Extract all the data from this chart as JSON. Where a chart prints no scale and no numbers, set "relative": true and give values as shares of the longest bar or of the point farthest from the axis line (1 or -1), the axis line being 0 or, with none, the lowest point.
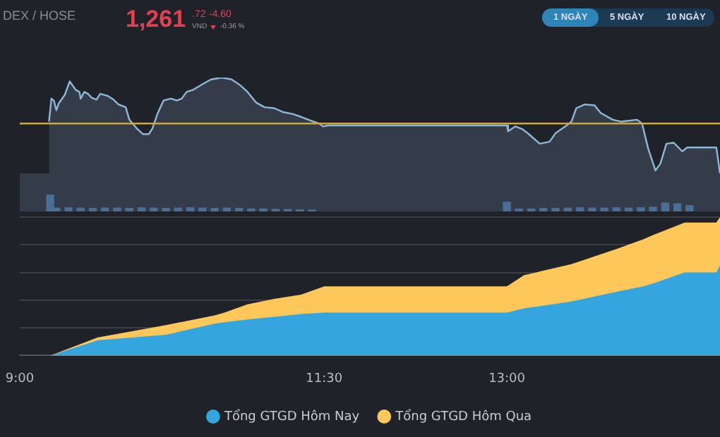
{
  "chart_data": [
    {
      "type": "area",
      "title": "DEX / HOSE",
      "annotations": [
        "1,261",
        ".72",
        "VND",
        "-4.60",
        "-0.36 %",
        "1 NGÀY",
        "5 NGÀY",
        "10 NGÀY"
      ],
      "relative": true,
      "tick_labels": false,
      "xlim": [
        9,
        14.75
      ],
      "color": "#8fb8d8",
      "x": [
        9.24,
        9.26,
        9.28,
        9.3,
        9.32,
        9.37,
        9.41,
        9.46,
        9.49,
        9.5,
        9.53,
        9.56,
        9.59,
        9.63,
        9.66,
        9.72,
        9.77,
        9.81,
        9.87,
        9.9,
        9.96,
        10.01,
        10.06,
        10.09,
        10.13,
        10.18,
        10.24,
        10.29,
        10.33,
        10.37,
        10.42,
        10.5,
        10.57,
        10.66,
        10.74,
        10.81,
        10.87,
        10.94,
        11.01,
        11.09,
        11.16,
        11.24,
        11.31,
        11.39,
        11.46,
        11.49,
        11.53,
        13.0,
        13.01,
        13.07,
        13.13,
        13.18,
        13.27,
        13.35,
        13.4,
        13.48,
        13.53,
        13.57,
        13.64,
        13.72,
        13.77,
        13.87,
        13.94,
        14.07,
        14.11,
        14.16,
        14.22,
        14.26,
        14.31,
        14.37,
        14.44,
        14.48,
        14.72,
        14.75
      ],
      "values": [
        0.54,
        0.78,
        0.76,
        0.66,
        0.73,
        0.82,
        0.96,
        0.87,
        0.85,
        0.78,
        0.85,
        0.83,
        0.79,
        0.77,
        0.83,
        0.81,
        0.77,
        0.72,
        0.69,
        0.56,
        0.47,
        0.41,
        0.41,
        0.47,
        0.62,
        0.76,
        0.78,
        0.76,
        0.78,
        0.85,
        0.87,
        0.93,
        0.98,
        1,
        0.98,
        0.92,
        0.85,
        0.74,
        0.69,
        0.68,
        0.64,
        0.62,
        0.59,
        0.55,
        0.52,
        0.49,
        0.5,
        0.5,
        0.44,
        0.49,
        0.46,
        0.41,
        0.31,
        0.33,
        0.42,
        0.49,
        0.54,
        0.68,
        0.72,
        0.71,
        0.63,
        0.56,
        0.54,
        0.56,
        0.52,
        0.26,
        0.03,
        0.1,
        0.31,
        0.32,
        0.23,
        0.27,
        0.27,
        0
      ],
      "ref_lines": [
        {
          "axis": "y",
          "value": 0.52,
          "color": "#c8a84a"
        }
      ]
    },
    {
      "type": "bar",
      "relative": true,
      "tick_labels": false,
      "xlim": [
        9,
        14.75
      ],
      "color": "#4a6f96",
      "x": [
        9.25,
        9.3,
        9.4,
        9.5,
        9.6,
        9.7,
        9.8,
        9.9,
        10.0,
        10.1,
        10.2,
        10.3,
        10.4,
        10.5,
        10.6,
        10.7,
        10.8,
        10.9,
        11.0,
        11.1,
        11.2,
        11.3,
        11.4,
        13.0,
        13.1,
        13.2,
        13.3,
        13.4,
        13.5,
        13.6,
        13.7,
        13.8,
        13.9,
        14.0,
        14.1,
        14.2,
        14.3,
        14.4,
        14.5
      ],
      "values": [
        1,
        0.2,
        0.22,
        0.2,
        0.18,
        0.2,
        0.2,
        0.18,
        0.22,
        0.2,
        0.18,
        0.2,
        0.22,
        0.2,
        0.18,
        0.2,
        0.18,
        0.15,
        0.15,
        0.12,
        0.12,
        0.1,
        0.08,
        0.55,
        0.15,
        0.15,
        0.18,
        0.18,
        0.2,
        0.22,
        0.2,
        0.2,
        0.22,
        0.2,
        0.22,
        0.25,
        0.5,
        0.45,
        0.35
      ]
    },
    {
      "type": "area",
      "relative": true,
      "tick_labels": "x",
      "grid": "y",
      "legend": "bottom",
      "xlim": [
        9,
        14.75
      ],
      "xticks": [
        {
          "value": 9,
          "label": "9:00"
        },
        {
          "value": 11.5,
          "label": "11:30"
        },
        {
          "value": 13,
          "label": "13:00"
        }
      ],
      "x": [
        9.25,
        9.64,
        10.2,
        10.6,
        10.68,
        10.87,
        11.09,
        11.31,
        11.5,
        13,
        13.14,
        13.53,
        13.9,
        14.12,
        14.2,
        14.46,
        14.72,
        14.75
      ],
      "series": [
        {
          "name": "Tổng GTGD Hôm Nay",
          "color": "#35a5e0",
          "values": [
            0,
            0.11,
            0.15,
            0.23,
            0.24,
            0.26,
            0.28,
            0.3,
            0.31,
            0.31,
            0.34,
            0.39,
            0.46,
            0.5,
            0.52,
            0.6,
            0.6,
            0.65
          ]
        },
        {
          "name": "Tổng GTGD Hôm Qua",
          "color": "#fdc75a",
          "values": [
            0,
            0.13,
            0.22,
            0.29,
            0.31,
            0.37,
            0.41,
            0.44,
            0.5,
            0.5,
            0.58,
            0.66,
            0.77,
            0.84,
            0.87,
            0.96,
            0.96,
            1
          ]
        }
      ]
    }
  ]
}
